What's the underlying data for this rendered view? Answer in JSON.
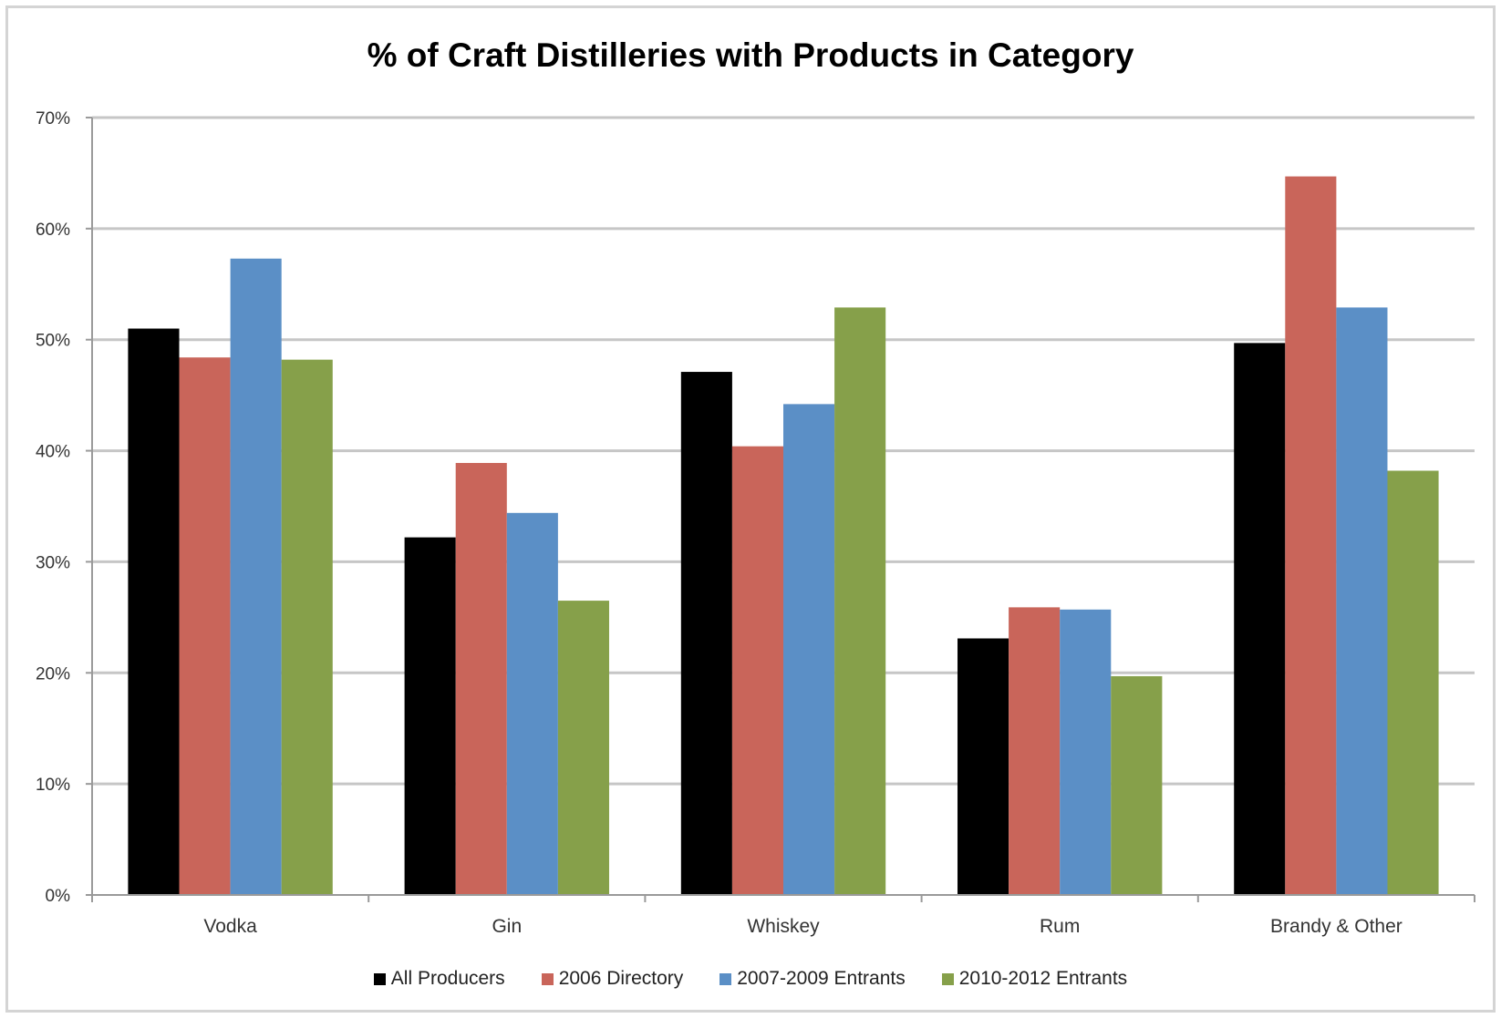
{
  "chart_data": {
    "type": "bar",
    "title": "% of Craft Distilleries with Products in Category",
    "xlabel": "",
    "ylabel": "",
    "ylim": [
      0,
      70
    ],
    "yticks": [
      0,
      10,
      20,
      30,
      40,
      50,
      60,
      70
    ],
    "ytick_labels": [
      "0%",
      "10%",
      "20%",
      "30%",
      "40%",
      "50%",
      "60%",
      "70%"
    ],
    "grid": true,
    "legend_position": "bottom",
    "categories": [
      "Vodka",
      "Gin",
      "Whiskey",
      "Rum",
      "Brandy & Other"
    ],
    "series": [
      {
        "name": "All Producers",
        "color": "#000000",
        "values": [
          51,
          32.2,
          47.1,
          23.1,
          49.7
        ]
      },
      {
        "name": "2006 Directory",
        "color": "#c9655a",
        "values": [
          48.4,
          38.9,
          40.4,
          25.9,
          64.7
        ]
      },
      {
        "name": "2007-2009 Entrants",
        "color": "#5b8fc6",
        "values": [
          57.3,
          34.4,
          44.2,
          25.7,
          52.9
        ]
      },
      {
        "name": "2010-2012 Entrants",
        "color": "#86a04a",
        "values": [
          48.2,
          26.5,
          52.9,
          19.7,
          38.2
        ]
      }
    ]
  }
}
